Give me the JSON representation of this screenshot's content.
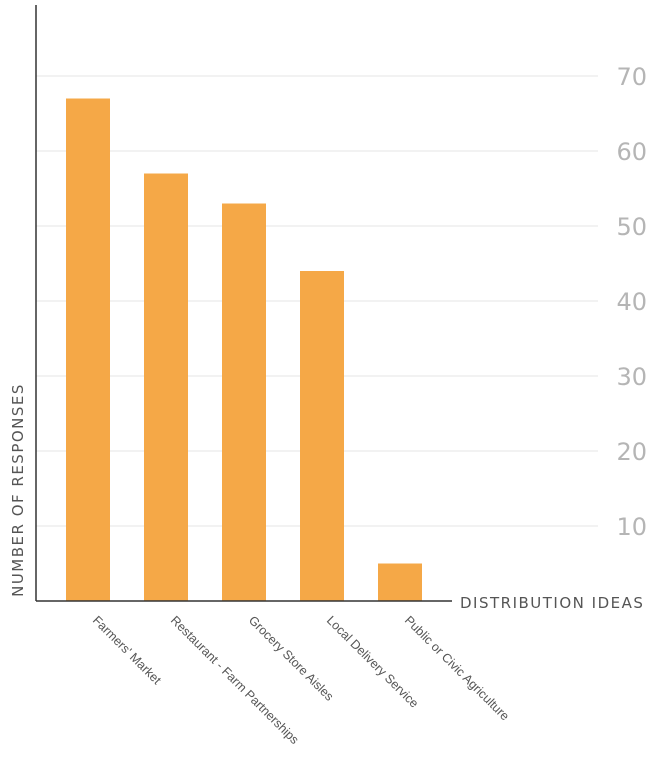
{
  "chart_data": {
    "type": "bar",
    "title": "",
    "xlabel": "DISTRIBUTION IDEAS",
    "ylabel": "NUMBER OF RESPONSES",
    "categories": [
      "Farmers' Market",
      "Restaurant - Farm Partnerships",
      "Grocery Store Aisles",
      "Local Delivery Service",
      "Public or Civic Agriculture"
    ],
    "values": [
      67,
      57,
      53,
      44,
      5
    ],
    "ylim": [
      0,
      80
    ],
    "yticks": [
      10,
      20,
      30,
      40,
      50,
      60,
      70
    ],
    "grid": true,
    "bar_color": "#f5a847",
    "grid_color": "#e6e6e6",
    "tick_color": "#b5b5b5",
    "axis_color": "#333333"
  }
}
